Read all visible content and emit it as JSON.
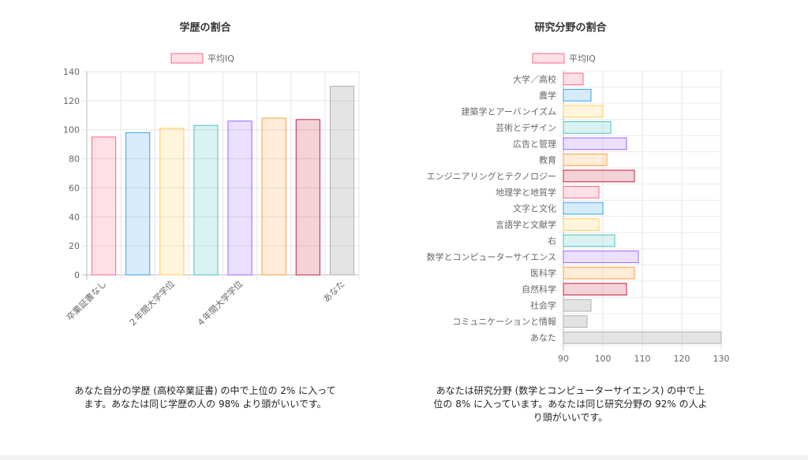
{
  "left": {
    "title": "学歴の割合",
    "caption": "あなた自分の学歴 (高校卒業証書) の中で上位の 2% に入ってます。あなたは同じ学歴の人の 98% より頭がいいです。"
  },
  "right": {
    "title": "研究分野の割合",
    "caption": "あなたは研究分野 (数学とコンピューターサイエンス) の中で上位の 8% に入っています。あなたは同じ研究分野の 92% の人より頭がいいです。"
  },
  "chart_data": [
    {
      "type": "bar",
      "title": "学歴の割合",
      "legend": "平均IQ",
      "legend_position": "top",
      "categories": [
        "卒業証書なし",
        "",
        "２年間大学学位",
        "",
        "４年間大学学位",
        "",
        "",
        "あなた"
      ],
      "values": [
        95,
        98,
        101,
        103,
        106,
        108,
        107,
        130
      ],
      "ylim": [
        0,
        140
      ],
      "yticks": [
        0,
        20,
        40,
        60,
        80,
        100,
        120,
        140
      ],
      "grid": true,
      "colors": [
        "#ff6384",
        "#36a2eb",
        "#ffcd56",
        "#4bc0c0",
        "#9966ff",
        "#ff9f40",
        "#c9203c",
        "#b0b0b0"
      ]
    },
    {
      "type": "bar",
      "orientation": "horizontal",
      "title": "研究分野の割合",
      "legend": "平均IQ",
      "legend_position": "top",
      "categories": [
        "大学／高校",
        "農学",
        "建築学とアーバンイズム",
        "芸術とデザイン",
        "広告と管理",
        "教育",
        "エンジニアリングとテクノロジー",
        "地理学と地質学",
        "文字と文化",
        "言語学と文献学",
        "右",
        "数学とコンピューターサイエンス",
        "医科学",
        "自然科学",
        "社会学",
        "コミュニケーションと情報",
        "あなた"
      ],
      "values": [
        95,
        97,
        100,
        102,
        106,
        101,
        108,
        99,
        100,
        99,
        103,
        109,
        108,
        106,
        97,
        96,
        130
      ],
      "xlim": [
        90,
        130
      ],
      "xticks": [
        90,
        100,
        110,
        120,
        130
      ],
      "grid": true,
      "colors": [
        "#ff6384",
        "#36a2eb",
        "#ffcd56",
        "#4bc0c0",
        "#9966ff",
        "#ff9f40",
        "#c9203c",
        "#ff6384",
        "#36a2eb",
        "#ffcd56",
        "#4bc0c0",
        "#9966ff",
        "#ff9f40",
        "#c9203c",
        "#b0b0b0",
        "#b0b0b0",
        "#b0b0b0"
      ]
    }
  ]
}
